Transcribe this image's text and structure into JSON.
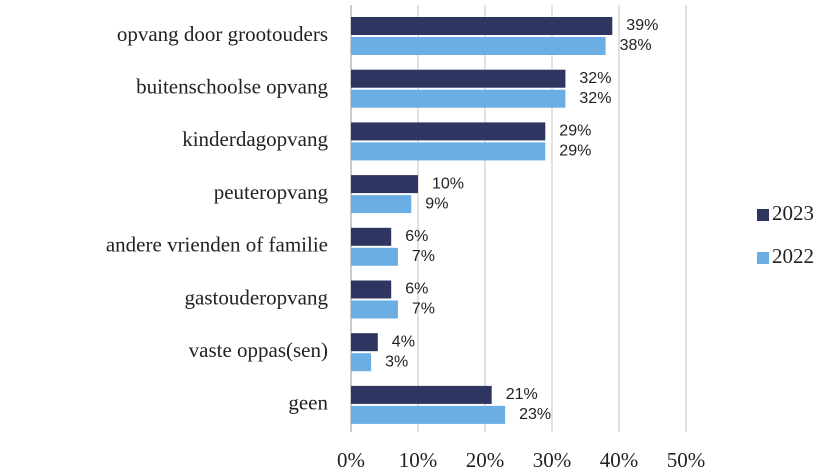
{
  "chart_data": {
    "type": "hbar",
    "categories": [
      "opvang door grootouders",
      "buitenschoolse opvang",
      "kinderdagopvang",
      "peuteropvang",
      "andere vrienden of familie",
      "gastouderopvang",
      "vaste oppas(sen)",
      "geen"
    ],
    "series": [
      {
        "name": "2023",
        "color": "#2e3560",
        "values": [
          39,
          32,
          29,
          10,
          6,
          6,
          4,
          21
        ],
        "value_labels": [
          "39%",
          "32%",
          "29%",
          "10%",
          "6%",
          "6%",
          "4%",
          "21%"
        ]
      },
      {
        "name": "2022",
        "color": "#6aaee3",
        "values": [
          38,
          32,
          29,
          9,
          7,
          7,
          3,
          23
        ],
        "value_labels": [
          "38%",
          "32%",
          "29%",
          "9%",
          "7%",
          "7%",
          "3%",
          "23%"
        ]
      }
    ],
    "xlim": [
      0,
      50
    ],
    "xticks": [
      {
        "value": 0,
        "label": "0%"
      },
      {
        "value": 10,
        "label": "10%"
      },
      {
        "value": 20,
        "label": "20%"
      },
      {
        "value": 30,
        "label": "30%"
      },
      {
        "value": 40,
        "label": "40%"
      },
      {
        "value": 50,
        "label": "50%"
      }
    ],
    "grid": true,
    "legend": "right"
  }
}
